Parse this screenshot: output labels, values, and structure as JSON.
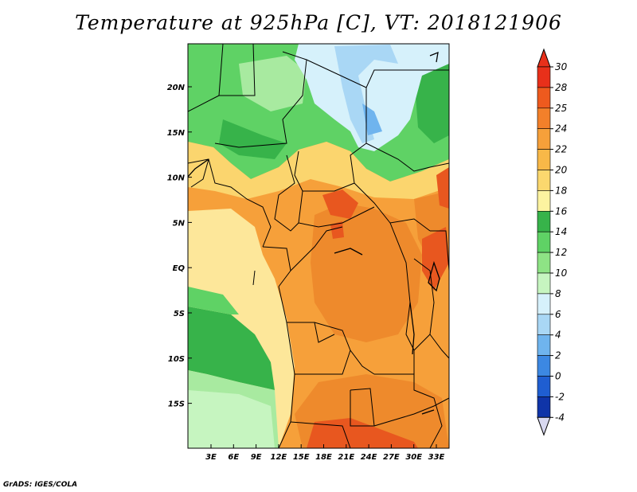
{
  "title": "Temperature at 925hPa [C], VT: 2018121906",
  "credit": "GrADS: IGES/COLA",
  "map": {
    "lat_labels": [
      "20N",
      "15N",
      "10N",
      "5N",
      "EQ",
      "5S",
      "10S",
      "15S"
    ],
    "lon_labels": [
      "3E",
      "6E",
      "9E",
      "12E",
      "15E",
      "18E",
      "21E",
      "24E",
      "27E",
      "30E",
      "33E"
    ],
    "colors": {
      "deep_green": "#37b34a",
      "green": "#5fd265",
      "light_green": "#a8eaa0",
      "pale_green": "#c6f5c0",
      "pale_yellow": "#fde79a",
      "yellow": "#fbd56e",
      "light_orange": "#f9ba4a",
      "orange": "#f3a43a",
      "dark_orange": "#ee8a2c",
      "red_orange": "#e8571f",
      "pale_blue": "#d6f1fb",
      "light_blue": "#a9d7f5",
      "blue": "#6fb4ee",
      "border": "#000000"
    }
  },
  "colorbar": {
    "labels": [
      "30",
      "28",
      "25",
      "24",
      "22",
      "20",
      "18",
      "16",
      "14",
      "12",
      "10",
      "8",
      "6",
      "4",
      "2",
      "0",
      "-2",
      "-4"
    ],
    "colors": [
      "#e8301a",
      "#ee5a1e",
      "#f3802a",
      "#f6a03a",
      "#f8b848",
      "#fbd86e",
      "#fcf3a0",
      "#37b34a",
      "#5fd265",
      "#8ee385",
      "#c6f5c0",
      "#d6f1fb",
      "#a9d7f5",
      "#6fb4ee",
      "#3c88e2",
      "#1f5ed1",
      "#0f34a8",
      "#07127a"
    ]
  },
  "chart_data": {
    "type": "heatmap",
    "title": "Temperature at 925hPa [C], VT: 2018121906",
    "variable": "Temperature at 925hPa",
    "units": "C",
    "valid_time": "2018121906",
    "x_ticks": [
      "3E",
      "6E",
      "9E",
      "12E",
      "15E",
      "18E",
      "21E",
      "24E",
      "27E",
      "30E",
      "33E"
    ],
    "y_ticks": [
      "20N",
      "15N",
      "10N",
      "5N",
      "EQ",
      "5S",
      "10S",
      "15S"
    ],
    "color_levels": [
      -4,
      -2,
      0,
      2,
      4,
      6,
      8,
      10,
      12,
      14,
      16,
      18,
      20,
      22,
      24,
      25,
      28,
      30
    ]
  }
}
